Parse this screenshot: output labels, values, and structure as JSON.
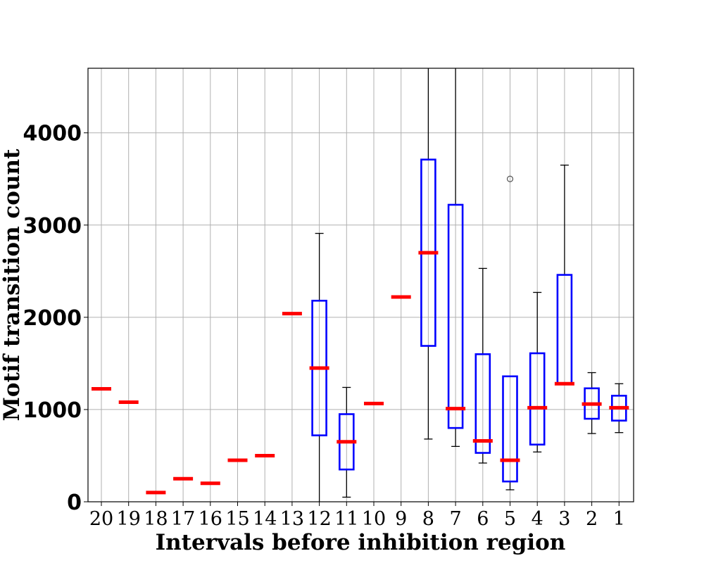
{
  "chart_data": {
    "type": "box",
    "xlabel": "Intervals before inhibition region",
    "ylabel": "Motif transition count",
    "ylim": [
      0,
      4700
    ],
    "yticks": [
      0,
      1000,
      2000,
      3000,
      4000
    ],
    "ytick_labels": [
      "0",
      "1000",
      "2000",
      "3000",
      "4000"
    ],
    "grid": true,
    "colors": {
      "box": "#0000ff",
      "median": "#ff0000",
      "whisker": "#000000",
      "grid": "#b0b0b0",
      "outlier": "#555555"
    },
    "categories": [
      "20",
      "19",
      "18",
      "17",
      "16",
      "15",
      "14",
      "13",
      "12",
      "11",
      "10",
      "9",
      "8",
      "7",
      "6",
      "5",
      "4",
      "3",
      "2",
      "1"
    ],
    "boxes": [
      {
        "label": "20",
        "whislo": 1225,
        "q1": 1225,
        "med": 1225,
        "q3": 1225,
        "whishi": 1225,
        "fliers": []
      },
      {
        "label": "19",
        "whislo": 1080,
        "q1": 1080,
        "med": 1080,
        "q3": 1080,
        "whishi": 1080,
        "fliers": []
      },
      {
        "label": "18",
        "whislo": 100,
        "q1": 100,
        "med": 100,
        "q3": 100,
        "whishi": 100,
        "fliers": []
      },
      {
        "label": "17",
        "whislo": 250,
        "q1": 250,
        "med": 250,
        "q3": 250,
        "whishi": 250,
        "fliers": []
      },
      {
        "label": "16",
        "whislo": 200,
        "q1": 200,
        "med": 200,
        "q3": 200,
        "whishi": 200,
        "fliers": []
      },
      {
        "label": "15",
        "whislo": 450,
        "q1": 450,
        "med": 450,
        "q3": 450,
        "whishi": 450,
        "fliers": []
      },
      {
        "label": "14",
        "whislo": 500,
        "q1": 500,
        "med": 500,
        "q3": 500,
        "whishi": 500,
        "fliers": []
      },
      {
        "label": "13",
        "whislo": 2040,
        "q1": 2040,
        "med": 2040,
        "q3": 2040,
        "whishi": 2040,
        "fliers": []
      },
      {
        "label": "12",
        "whislo": 0,
        "q1": 720,
        "med": 1450,
        "q3": 2180,
        "whishi": 2910,
        "fliers": []
      },
      {
        "label": "11",
        "whislo": 50,
        "q1": 350,
        "med": 650,
        "q3": 950,
        "whishi": 1240,
        "fliers": []
      },
      {
        "label": "10",
        "whislo": 1065,
        "q1": 1065,
        "med": 1065,
        "q3": 1065,
        "whishi": 1065,
        "fliers": []
      },
      {
        "label": "9",
        "whislo": 2220,
        "q1": 2220,
        "med": 2220,
        "q3": 2220,
        "whishi": 2220,
        "fliers": []
      },
      {
        "label": "8",
        "whislo": 680,
        "q1": 1690,
        "med": 2700,
        "q3": 3710,
        "whishi": 4720,
        "fliers": []
      },
      {
        "label": "7",
        "whislo": 600,
        "q1": 800,
        "med": 1010,
        "q3": 3220,
        "whishi": 4720,
        "fliers": []
      },
      {
        "label": "6",
        "whislo": 420,
        "q1": 530,
        "med": 660,
        "q3": 1600,
        "whishi": 2530,
        "fliers": []
      },
      {
        "label": "5",
        "whislo": 130,
        "q1": 220,
        "med": 450,
        "q3": 1360,
        "whishi": 1360,
        "fliers": [
          3500
        ]
      },
      {
        "label": "4",
        "whislo": 540,
        "q1": 620,
        "med": 1020,
        "q3": 1610,
        "whishi": 2270,
        "fliers": []
      },
      {
        "label": "3",
        "whislo": 1280,
        "q1": 1280,
        "med": 1280,
        "q3": 2460,
        "whishi": 3650,
        "fliers": []
      },
      {
        "label": "2",
        "whislo": 740,
        "q1": 900,
        "med": 1060,
        "q3": 1230,
        "whishi": 1400,
        "fliers": []
      },
      {
        "label": "1",
        "whislo": 750,
        "q1": 880,
        "med": 1020,
        "q3": 1150,
        "whishi": 1280,
        "fliers": []
      }
    ]
  }
}
